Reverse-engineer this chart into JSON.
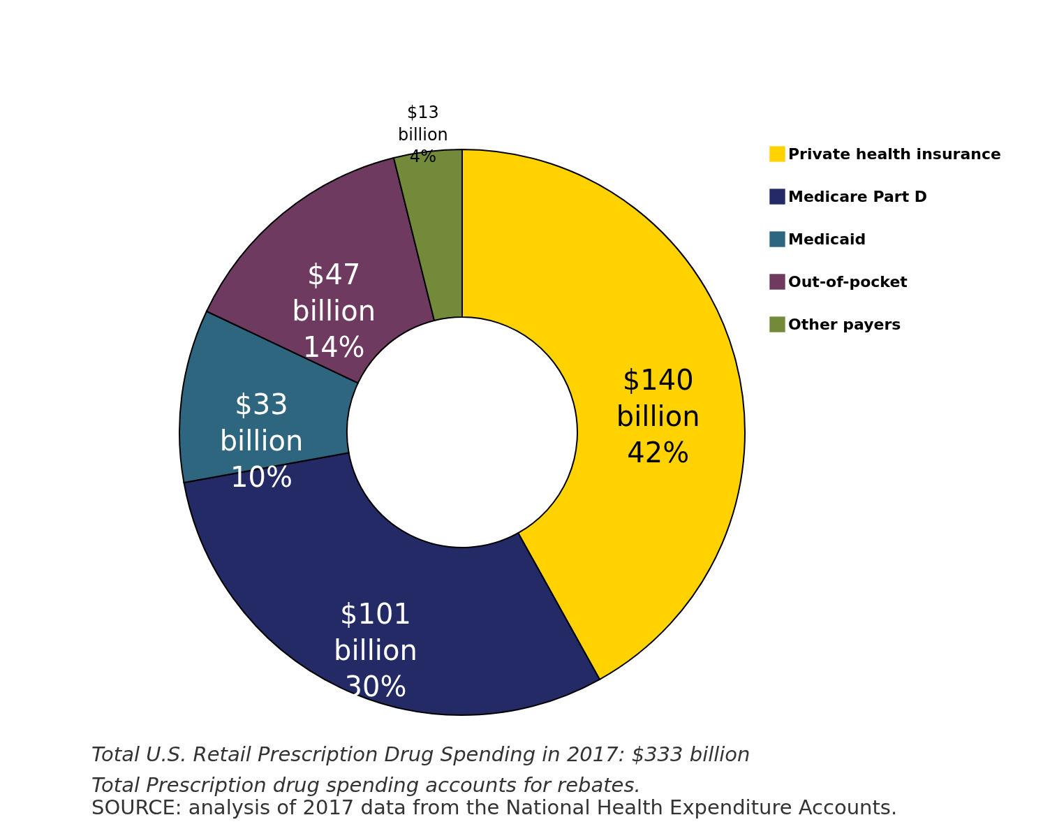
{
  "chart_data": {
    "type": "donut",
    "categories": [
      "Private health insurance",
      "Medicare Part D",
      "Medicaid",
      "Out-of-pocket",
      "Other payers"
    ],
    "values": [
      140,
      101,
      33,
      47,
      13
    ],
    "colors": [
      "#ffd200",
      "#232a66",
      "#2e667f",
      "#6e3a60",
      "#738a3a"
    ],
    "value_labels": [
      "$140\nbillion\n42%",
      "$101\nbillion\n30%",
      "$33\nbillion\n10%",
      "$47\nbillion\n14%",
      "$13\nbillion\n4%"
    ],
    "legend": "right",
    "annotations": [
      "Total U.S. Retail Prescription Drug Spending in 2017: $333 billion",
      "Total Prescription drug spending accounts for rebates.",
      "SOURCE: analysis of 2017 data from the National Health Expenditure Accounts."
    ]
  }
}
